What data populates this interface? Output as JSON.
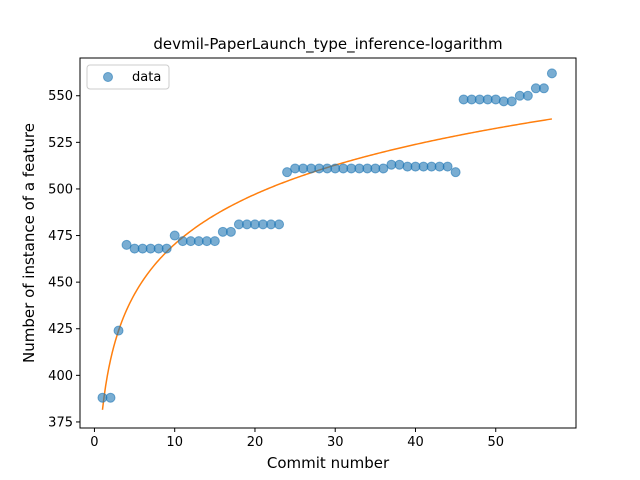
{
  "chart_data": {
    "type": "scatter",
    "title": "devmil-PaperLaunch_type_inference-logarithm",
    "xlabel": "Commit number",
    "ylabel": "Number of instance of a feature",
    "xlim": [
      -1.8,
      60.0
    ],
    "ylim": [
      371.75,
      570.25
    ],
    "xticks": [
      0,
      10,
      20,
      30,
      40,
      50
    ],
    "yticks": [
      375,
      400,
      425,
      450,
      475,
      500,
      525,
      550
    ],
    "grid": false,
    "legend": {
      "position": "top-left",
      "entries": [
        "data"
      ]
    },
    "colors": {
      "points": "#1f77b4",
      "fit": "#ff7f0e"
    },
    "series": [
      {
        "name": "data",
        "kind": "scatter",
        "x": [
          1,
          2,
          3,
          4,
          5,
          6,
          7,
          8,
          9,
          10,
          11,
          12,
          13,
          14,
          15,
          16,
          17,
          18,
          19,
          20,
          21,
          22,
          23,
          24,
          25,
          26,
          27,
          28,
          29,
          30,
          31,
          32,
          33,
          34,
          35,
          36,
          37,
          38,
          39,
          40,
          41,
          42,
          43,
          44,
          45,
          46,
          47,
          48,
          49,
          50,
          51,
          52,
          53,
          54,
          55,
          56,
          57
        ],
        "y": [
          388,
          388,
          424,
          470,
          468,
          468,
          468,
          468,
          468,
          475,
          472,
          472,
          472,
          472,
          472,
          477,
          477,
          481,
          481,
          481,
          481,
          481,
          481,
          509,
          511,
          511,
          511,
          511,
          511,
          511,
          511,
          511,
          511,
          511,
          511,
          511,
          513,
          513,
          512,
          512,
          512,
          512,
          512,
          512,
          509,
          548,
          548,
          548,
          548,
          548,
          547,
          547,
          550,
          550,
          554,
          554,
          562
        ]
      },
      {
        "kind": "line",
        "fit": {
          "a": 381.5,
          "b": 38.6,
          "x_start": 1,
          "x_end": 57
        }
      }
    ]
  }
}
